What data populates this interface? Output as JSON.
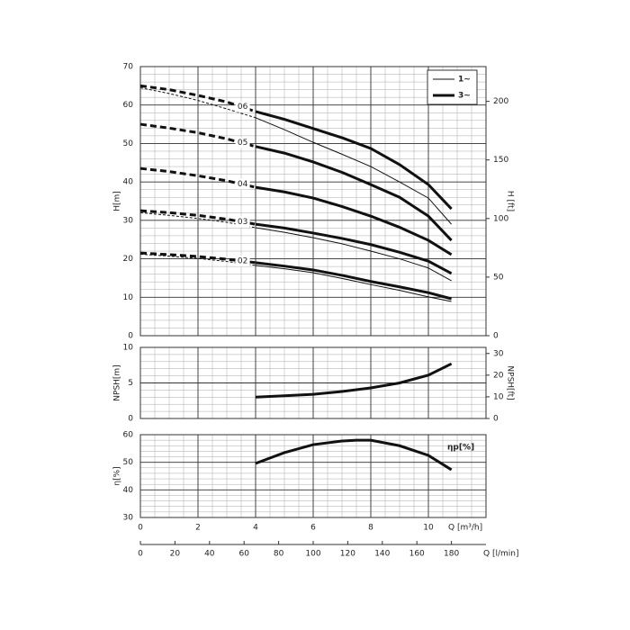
{
  "chart_data": [
    {
      "type": "line",
      "ylabel": "H[m]",
      "y2label": "H [ft]",
      "xlim": [
        0,
        12
      ],
      "xticks": [
        0,
        2,
        4,
        6,
        8,
        10
      ],
      "ylim": [
        0,
        70
      ],
      "yticks": [
        0,
        10,
        20,
        30,
        40,
        50,
        60,
        70
      ],
      "y2lim": [
        0,
        229.66
      ],
      "y2ticks": [
        0,
        50,
        100,
        150,
        200
      ],
      "grid": true,
      "legend": [
        {
          "label": "1~",
          "key": "thin",
          "width": 1
        },
        {
          "label": "3~",
          "key": "thick",
          "width": 3
        }
      ],
      "legend_position": "upper right",
      "curves": [
        {
          "label": "06",
          "thick": {
            "x": [
              4,
              5,
              6,
              7,
              8,
              9,
              10,
              10.8
            ],
            "values": [
              58.3,
              56.3,
              53.9,
              51.5,
              48.7,
              44.5,
              39.3,
              33
            ],
            "ext_x": [
              0,
              1,
              2,
              3,
              4
            ],
            "ext_values": [
              65,
              64,
              62.5,
              60.8,
              58.3
            ]
          },
          "thin": {
            "x": [
              4,
              5,
              6,
              7,
              8,
              9,
              10,
              10.8
            ],
            "values": [
              56.7,
              53.6,
              50.3,
              47.2,
              44,
              40,
              35.8,
              29
            ],
            "ext_x": [
              0,
              1,
              2,
              3,
              4
            ],
            "ext_values": [
              64.5,
              63,
              61.2,
              59,
              56.7
            ]
          }
        },
        {
          "label": "05",
          "thick": {
            "x": [
              4,
              5,
              6,
              7,
              8,
              9,
              10,
              10.8
            ],
            "values": [
              49.2,
              47.5,
              45.2,
              42.5,
              39.3,
              36,
              31.1,
              24.8
            ],
            "ext_x": [
              0,
              1,
              2,
              3,
              4
            ],
            "ext_values": [
              55,
              54,
              52.8,
              51.2,
              49.2
            ]
          }
        },
        {
          "label": "04",
          "thick": {
            "x": [
              4,
              5,
              6,
              7,
              8,
              9,
              10,
              10.8
            ],
            "values": [
              38.6,
              37.4,
              35.8,
              33.6,
              31.1,
              28.2,
              24.8,
              21.1
            ],
            "ext_x": [
              0,
              1,
              2,
              3,
              4
            ],
            "ext_values": [
              43.5,
              42.7,
              41.6,
              40.3,
              38.6
            ]
          }
        },
        {
          "label": "03",
          "thick": {
            "x": [
              4,
              5,
              6,
              7,
              8,
              9,
              10,
              10.8
            ],
            "values": [
              29,
              28,
              26.7,
              25.3,
              23.7,
              21.7,
              19.4,
              16.2
            ],
            "ext_x": [
              0,
              1,
              2,
              3,
              4
            ],
            "ext_values": [
              32.5,
              32,
              31.3,
              30.3,
              29
            ]
          },
          "thin": {
            "x": [
              4,
              5,
              6,
              7,
              8,
              9,
              10,
              10.8
            ],
            "values": [
              28.1,
              26.9,
              25.5,
              23.9,
              22,
              20,
              17.6,
              14.3
            ],
            "ext_x": [
              0,
              1,
              2,
              3,
              4
            ],
            "ext_values": [
              32,
              31.3,
              30.5,
              29.5,
              28.1
            ]
          }
        },
        {
          "label": "02",
          "thick": {
            "x": [
              4,
              5,
              6,
              7,
              8,
              9,
              10,
              10.8
            ],
            "values": [
              19,
              18.1,
              17.1,
              15.7,
              14.1,
              12.7,
              11.2,
              9.6
            ],
            "ext_x": [
              0,
              1,
              2,
              3,
              4
            ],
            "ext_values": [
              21.5,
              21.1,
              20.6,
              19.9,
              19
            ]
          },
          "thin": {
            "x": [
              4,
              5,
              6,
              7,
              8,
              9,
              10,
              10.8
            ],
            "values": [
              18.3,
              17.4,
              16.4,
              14.9,
              13.3,
              11.8,
              10.1,
              8.9
            ],
            "ext_x": [
              0,
              1,
              2,
              3,
              4
            ],
            "ext_values": [
              21.2,
              20.7,
              20.1,
              19.3,
              18.3
            ]
          }
        }
      ]
    },
    {
      "type": "line",
      "ylabel": "NPSH[m]",
      "y2label": "NPSH[ft]",
      "xlim": [
        0,
        12
      ],
      "xticks": [
        0,
        2,
        4,
        6,
        8,
        10
      ],
      "ylim": [
        0,
        10
      ],
      "yticks": [
        0,
        5,
        10
      ],
      "y2lim": [
        0,
        32.81
      ],
      "y2ticks": [
        0,
        10,
        20,
        30
      ],
      "grid": true,
      "series": [
        {
          "x": [
            4,
            5,
            6,
            7,
            8,
            9,
            10,
            10.8
          ],
          "values": [
            3.0,
            3.2,
            3.4,
            3.8,
            4.3,
            5.0,
            6.1,
            7.7
          ],
          "color": "#111"
        }
      ]
    },
    {
      "type": "line",
      "ylabel": "η[%]",
      "annotation": "ηp[%]",
      "xlim": [
        0,
        12
      ],
      "xticks": [
        0,
        2,
        4,
        6,
        8,
        10
      ],
      "xlabel": "Q [m³/h]",
      "x2lim": [
        0,
        200
      ],
      "x2ticks": [
        0,
        20,
        40,
        60,
        80,
        100,
        120,
        140,
        160,
        180
      ],
      "x2label": "Q [l/min]",
      "ylim": [
        30,
        60
      ],
      "yticks": [
        30,
        40,
        50,
        60
      ],
      "grid": true,
      "series": [
        {
          "x": [
            4,
            5,
            6,
            7,
            7.5,
            8,
            9,
            10,
            10.8
          ],
          "values": [
            49.6,
            53.5,
            56.4,
            57.7,
            58,
            58,
            56,
            52.5,
            47.3
          ],
          "color": "#111"
        }
      ]
    }
  ]
}
